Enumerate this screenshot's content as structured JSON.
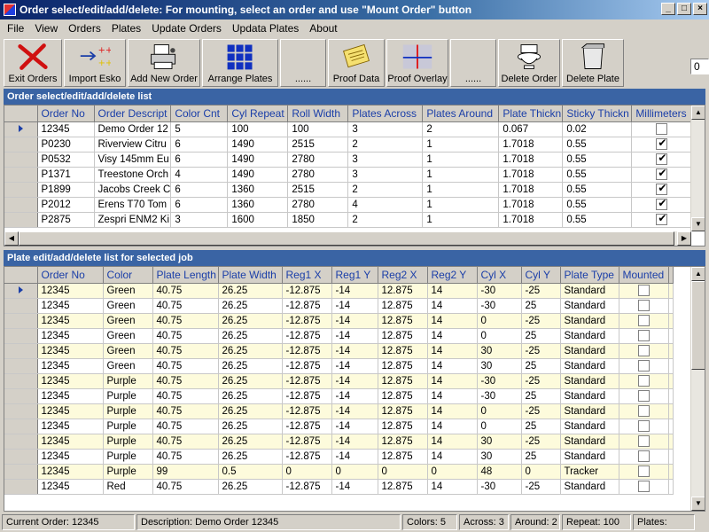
{
  "window": {
    "title": "Order select/edit/add/delete:  For mounting, select an order and use \"Mount Order\" button"
  },
  "menu": [
    "File",
    "View",
    "Orders",
    "Plates",
    "Update Orders",
    "Updata Plates",
    "About"
  ],
  "toolbar": {
    "exit_orders": "Exit Orders",
    "import_esko": "Import Esko",
    "add_new_order": "Add New Order",
    "arrange_plates": "Arrange Plates",
    "blank1": "......",
    "proof_data": "Proof Data",
    "proof_overlay": "Proof Overlay",
    "blank2": "......",
    "delete_order": "Delete Order",
    "delete_plate": "Delete Plate",
    "counter_value": "0"
  },
  "orders_panel": {
    "title": "Order select/edit/add/delete list",
    "columns": [
      "Order No",
      "Order Descript",
      "Color Cnt",
      "Cyl Repeat",
      "Roll Width",
      "Plates Across",
      "Plates Around",
      "Plate Thickn",
      "Sticky Thickn",
      "Millimeters"
    ],
    "rows": [
      [
        "12345",
        "Demo Order 12",
        "5",
        "100",
        "100",
        "3",
        "2",
        "0.067",
        "0.02",
        false
      ],
      [
        "P0230",
        "Riverview Citru",
        "6",
        "1490",
        "2515",
        "2",
        "1",
        "1.7018",
        "0.55",
        true
      ],
      [
        "P0532",
        "Visy 145mm Eu",
        "6",
        "1490",
        "2780",
        "3",
        "1",
        "1.7018",
        "0.55",
        true
      ],
      [
        "P1371",
        "Treestone Orch",
        "4",
        "1490",
        "2780",
        "3",
        "1",
        "1.7018",
        "0.55",
        true
      ],
      [
        "P1899",
        "Jacobs Creek C",
        "6",
        "1360",
        "2515",
        "2",
        "1",
        "1.7018",
        "0.55",
        true
      ],
      [
        "P2012",
        "Erens T70 Tom",
        "6",
        "1360",
        "2780",
        "4",
        "1",
        "1.7018",
        "0.55",
        true
      ],
      [
        "P2875",
        "Zespri ENM2 Ki",
        "3",
        "1600",
        "1850",
        "2",
        "1",
        "1.7018",
        "0.55",
        true
      ]
    ]
  },
  "plates_panel": {
    "title": "Plate edit/add/delete list for selected job",
    "columns": [
      "Order No",
      "Color",
      "Plate Length",
      "Plate Width",
      "Reg1 X",
      "Reg1 Y",
      "Reg2 X",
      "Reg2 Y",
      "Cyl X",
      "Cyl Y",
      "Plate Type",
      "Mounted"
    ],
    "rows": [
      [
        "12345",
        "Green",
        "40.75",
        "26.25",
        "-12.875",
        "-14",
        "12.875",
        "14",
        "-30",
        "-25",
        "Standard",
        false
      ],
      [
        "12345",
        "Green",
        "40.75",
        "26.25",
        "-12.875",
        "-14",
        "12.875",
        "14",
        "-30",
        "25",
        "Standard",
        false
      ],
      [
        "12345",
        "Green",
        "40.75",
        "26.25",
        "-12.875",
        "-14",
        "12.875",
        "14",
        "0",
        "-25",
        "Standard",
        false
      ],
      [
        "12345",
        "Green",
        "40.75",
        "26.25",
        "-12.875",
        "-14",
        "12.875",
        "14",
        "0",
        "25",
        "Standard",
        false
      ],
      [
        "12345",
        "Green",
        "40.75",
        "26.25",
        "-12.875",
        "-14",
        "12.875",
        "14",
        "30",
        "-25",
        "Standard",
        false
      ],
      [
        "12345",
        "Green",
        "40.75",
        "26.25",
        "-12.875",
        "-14",
        "12.875",
        "14",
        "30",
        "25",
        "Standard",
        false
      ],
      [
        "12345",
        "Purple",
        "40.75",
        "26.25",
        "-12.875",
        "-14",
        "12.875",
        "14",
        "-30",
        "-25",
        "Standard",
        false
      ],
      [
        "12345",
        "Purple",
        "40.75",
        "26.25",
        "-12.875",
        "-14",
        "12.875",
        "14",
        "-30",
        "25",
        "Standard",
        false
      ],
      [
        "12345",
        "Purple",
        "40.75",
        "26.25",
        "-12.875",
        "-14",
        "12.875",
        "14",
        "0",
        "-25",
        "Standard",
        false
      ],
      [
        "12345",
        "Purple",
        "40.75",
        "26.25",
        "-12.875",
        "-14",
        "12.875",
        "14",
        "0",
        "25",
        "Standard",
        false
      ],
      [
        "12345",
        "Purple",
        "40.75",
        "26.25",
        "-12.875",
        "-14",
        "12.875",
        "14",
        "30",
        "-25",
        "Standard",
        false
      ],
      [
        "12345",
        "Purple",
        "40.75",
        "26.25",
        "-12.875",
        "-14",
        "12.875",
        "14",
        "30",
        "25",
        "Standard",
        false
      ],
      [
        "12345",
        "Purple",
        "99",
        "0.5",
        "0",
        "0",
        "0",
        "0",
        "48",
        "0",
        "Tracker",
        false
      ],
      [
        "12345",
        "Red",
        "40.75",
        "26.25",
        "-12.875",
        "-14",
        "12.875",
        "14",
        "-30",
        "-25",
        "Standard",
        false
      ]
    ]
  },
  "status": {
    "current_order": "Current Order: 12345",
    "description": "Description: Demo Order 12345",
    "colors": "Colors: 5",
    "across": "Across: 3",
    "around": "Around: 2",
    "repeat": "Repeat: 100",
    "plates": "Plates:"
  }
}
